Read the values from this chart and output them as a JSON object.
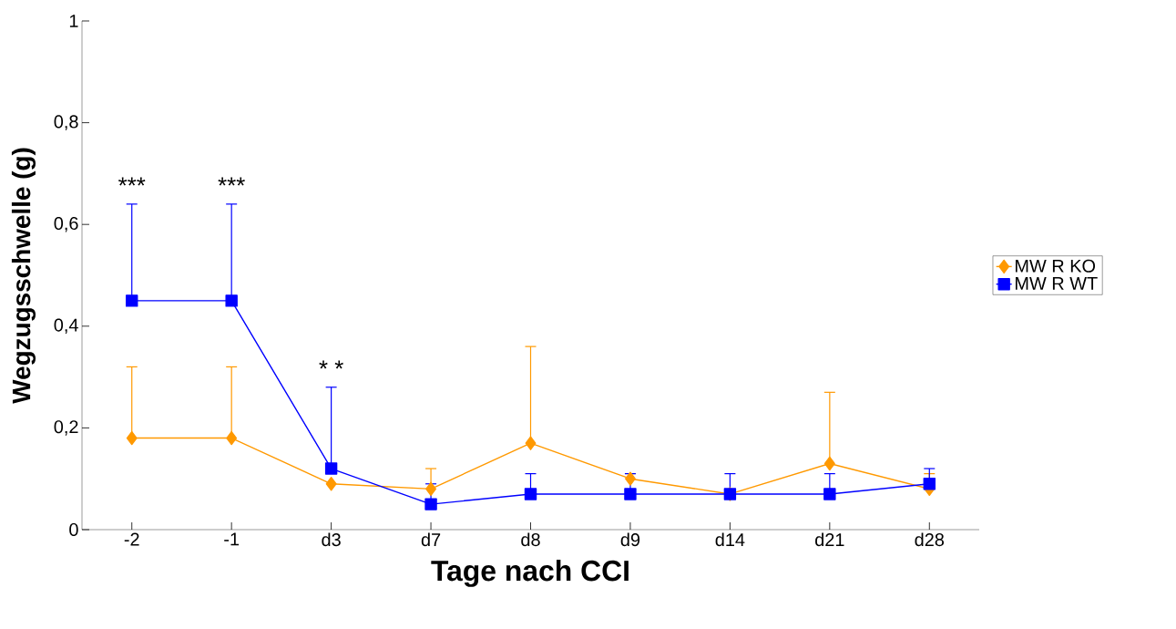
{
  "chart_data": {
    "type": "line",
    "xlabel": "Tage nach CCI",
    "ylabel": "Wegzugsschwelle (g)",
    "categories": [
      "-2",
      "-1",
      "d3",
      "d7",
      "d8",
      "d9",
      "d14",
      "d21",
      "d28"
    ],
    "series": [
      {
        "name": "MW R KO",
        "color": "#ff9900",
        "marker": "diamond",
        "values": [
          0.18,
          0.18,
          0.09,
          0.08,
          0.17,
          0.1,
          0.07,
          0.13,
          0.08
        ],
        "errors": [
          [
            0.18,
            0.32
          ],
          [
            0.18,
            0.32
          ],
          null,
          [
            0.08,
            0.12
          ],
          [
            0.17,
            0.36
          ],
          [
            0.1,
            0.11
          ],
          null,
          [
            0.13,
            0.27
          ],
          [
            0.08,
            0.11
          ]
        ]
      },
      {
        "name": "MW R WT",
        "color": "#0000ff",
        "marker": "square",
        "values": [
          0.45,
          0.45,
          0.12,
          0.05,
          0.07,
          0.07,
          0.07,
          0.07,
          0.09
        ],
        "errors": [
          [
            0.45,
            0.64
          ],
          [
            0.45,
            0.64
          ],
          [
            0.12,
            0.28
          ],
          [
            0.05,
            0.09
          ],
          [
            0.07,
            0.11
          ],
          [
            0.07,
            0.11
          ],
          [
            0.07,
            0.11
          ],
          [
            0.07,
            0.11
          ],
          [
            0.09,
            0.12
          ]
        ]
      }
    ],
    "ylim": [
      0,
      1
    ],
    "yticks": [
      0,
      {
        "value": 0.2,
        "label": "0,2"
      },
      {
        "value": 0.4,
        "label": "0,4"
      },
      {
        "value": 0.6,
        "label": "0,6"
      },
      {
        "value": 0.8,
        "label": "0,8"
      },
      1
    ],
    "grid": false,
    "legend": "right",
    "line_style": "solid",
    "annotations": [
      "***",
      "***",
      "* *"
    ]
  }
}
